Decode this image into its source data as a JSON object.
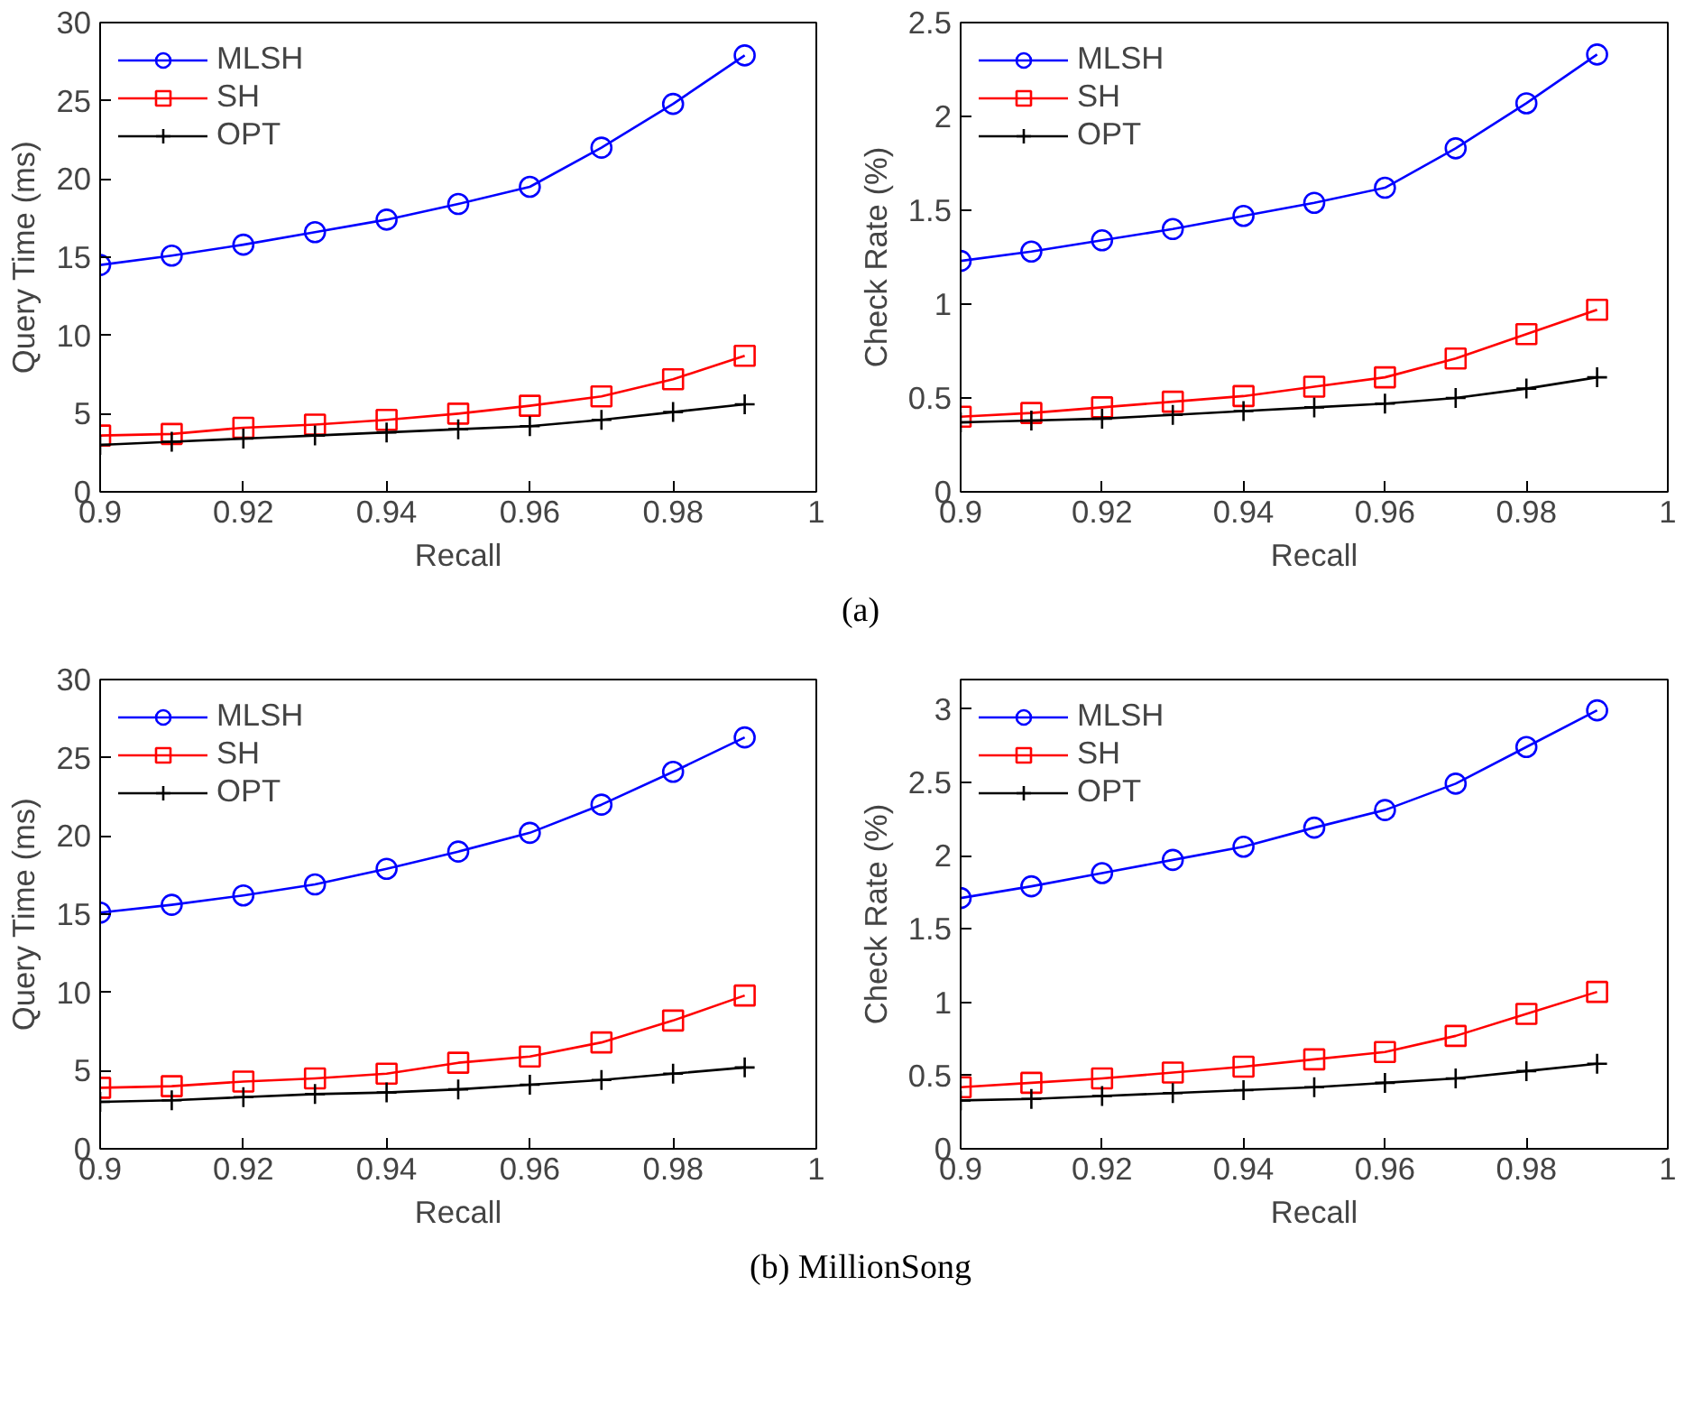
{
  "chart_data": [
    {
      "type": "line",
      "xlabel": "Recall",
      "ylabel": "Query Time (ms)",
      "x": [
        0.9,
        0.91,
        0.92,
        0.93,
        0.94,
        0.95,
        0.96,
        0.97,
        0.98,
        0.99
      ],
      "xlim": [
        0.9,
        1
      ],
      "xticks": [
        0.9,
        0.92,
        0.94,
        0.96,
        0.98,
        1
      ],
      "ylim": [
        0,
        30
      ],
      "yticks": [
        0,
        5,
        10,
        15,
        20,
        25,
        30
      ],
      "grid": false,
      "legend": "top left",
      "annotations": [
        "(a)"
      ],
      "series": [
        {
          "name": "MLSH",
          "color": "#0000ff",
          "marker": "circle",
          "values": [
            14.5,
            15.1,
            15.8,
            16.6,
            17.4,
            18.4,
            19.5,
            22.0,
            24.8,
            27.9
          ]
        },
        {
          "name": "SH",
          "color": "#ff0000",
          "marker": "square",
          "values": [
            3.6,
            3.7,
            4.1,
            4.3,
            4.6,
            5.0,
            5.5,
            6.1,
            7.2,
            8.7
          ]
        },
        {
          "name": "OPT",
          "color": "#000000",
          "marker": "cross",
          "values": [
            3.0,
            3.2,
            3.4,
            3.6,
            3.8,
            4.0,
            4.2,
            4.6,
            5.1,
            5.6
          ]
        }
      ]
    },
    {
      "type": "line",
      "xlabel": "Recall",
      "ylabel": "Check Rate (%)",
      "x": [
        0.9,
        0.91,
        0.92,
        0.93,
        0.94,
        0.95,
        0.96,
        0.97,
        0.98,
        0.99
      ],
      "xlim": [
        0.9,
        1
      ],
      "xticks": [
        0.9,
        0.92,
        0.94,
        0.96,
        0.98,
        1
      ],
      "ylim": [
        0,
        2.5
      ],
      "yticks": [
        0,
        0.5,
        1,
        1.5,
        2,
        2.5
      ],
      "grid": false,
      "legend": "top left",
      "series": [
        {
          "name": "MLSH",
          "color": "#0000ff",
          "marker": "circle",
          "values": [
            1.23,
            1.28,
            1.34,
            1.4,
            1.47,
            1.54,
            1.62,
            1.83,
            2.07,
            2.33
          ]
        },
        {
          "name": "SH",
          "color": "#ff0000",
          "marker": "square",
          "values": [
            0.4,
            0.42,
            0.45,
            0.48,
            0.51,
            0.56,
            0.61,
            0.71,
            0.84,
            0.97
          ]
        },
        {
          "name": "OPT",
          "color": "#000000",
          "marker": "cross",
          "values": [
            0.37,
            0.38,
            0.39,
            0.41,
            0.43,
            0.45,
            0.47,
            0.5,
            0.55,
            0.61
          ]
        }
      ]
    },
    {
      "type": "line",
      "xlabel": "Recall",
      "ylabel": "Query Time (ms)",
      "x": [
        0.9,
        0.91,
        0.92,
        0.93,
        0.94,
        0.95,
        0.96,
        0.97,
        0.98,
        0.99
      ],
      "xlim": [
        0.9,
        1
      ],
      "xticks": [
        0.9,
        0.92,
        0.94,
        0.96,
        0.98,
        1
      ],
      "ylim": [
        0,
        30
      ],
      "yticks": [
        0,
        5,
        10,
        15,
        20,
        25,
        30
      ],
      "grid": false,
      "legend": "top left",
      "annotations": [
        "(b) MillionSong"
      ],
      "series": [
        {
          "name": "MLSH",
          "color": "#0000ff",
          "marker": "circle",
          "values": [
            15.1,
            15.6,
            16.2,
            16.9,
            17.9,
            19.0,
            20.2,
            22.0,
            24.1,
            26.3
          ]
        },
        {
          "name": "SH",
          "color": "#ff0000",
          "marker": "square",
          "values": [
            3.9,
            4.0,
            4.3,
            4.5,
            4.8,
            5.5,
            5.9,
            6.8,
            8.2,
            9.8
          ]
        },
        {
          "name": "OPT",
          "color": "#000000",
          "marker": "cross",
          "values": [
            3.0,
            3.1,
            3.3,
            3.5,
            3.6,
            3.8,
            4.1,
            4.4,
            4.8,
            5.2
          ]
        }
      ]
    },
    {
      "type": "line",
      "xlabel": "Recall",
      "ylabel": "Check Rate (%)",
      "x": [
        0.9,
        0.91,
        0.92,
        0.93,
        0.94,
        0.95,
        0.96,
        0.97,
        0.98,
        0.99
      ],
      "xlim": [
        0.9,
        1
      ],
      "xticks": [
        0.9,
        0.92,
        0.94,
        0.96,
        0.98,
        1
      ],
      "ylim": [
        0,
        3.2
      ],
      "yticks": [
        0,
        0.5,
        1,
        1.5,
        2,
        2.5,
        3
      ],
      "grid": false,
      "legend": "top left",
      "series": [
        {
          "name": "MLSH",
          "color": "#0000ff",
          "marker": "circle",
          "values": [
            1.71,
            1.79,
            1.88,
            1.97,
            2.06,
            2.19,
            2.31,
            2.49,
            2.74,
            2.99
          ]
        },
        {
          "name": "SH",
          "color": "#ff0000",
          "marker": "square",
          "values": [
            0.42,
            0.45,
            0.48,
            0.52,
            0.56,
            0.61,
            0.66,
            0.77,
            0.92,
            1.07
          ]
        },
        {
          "name": "OPT",
          "color": "#000000",
          "marker": "cross",
          "values": [
            0.33,
            0.34,
            0.36,
            0.38,
            0.4,
            0.42,
            0.45,
            0.48,
            0.53,
            0.58
          ]
        }
      ]
    }
  ]
}
